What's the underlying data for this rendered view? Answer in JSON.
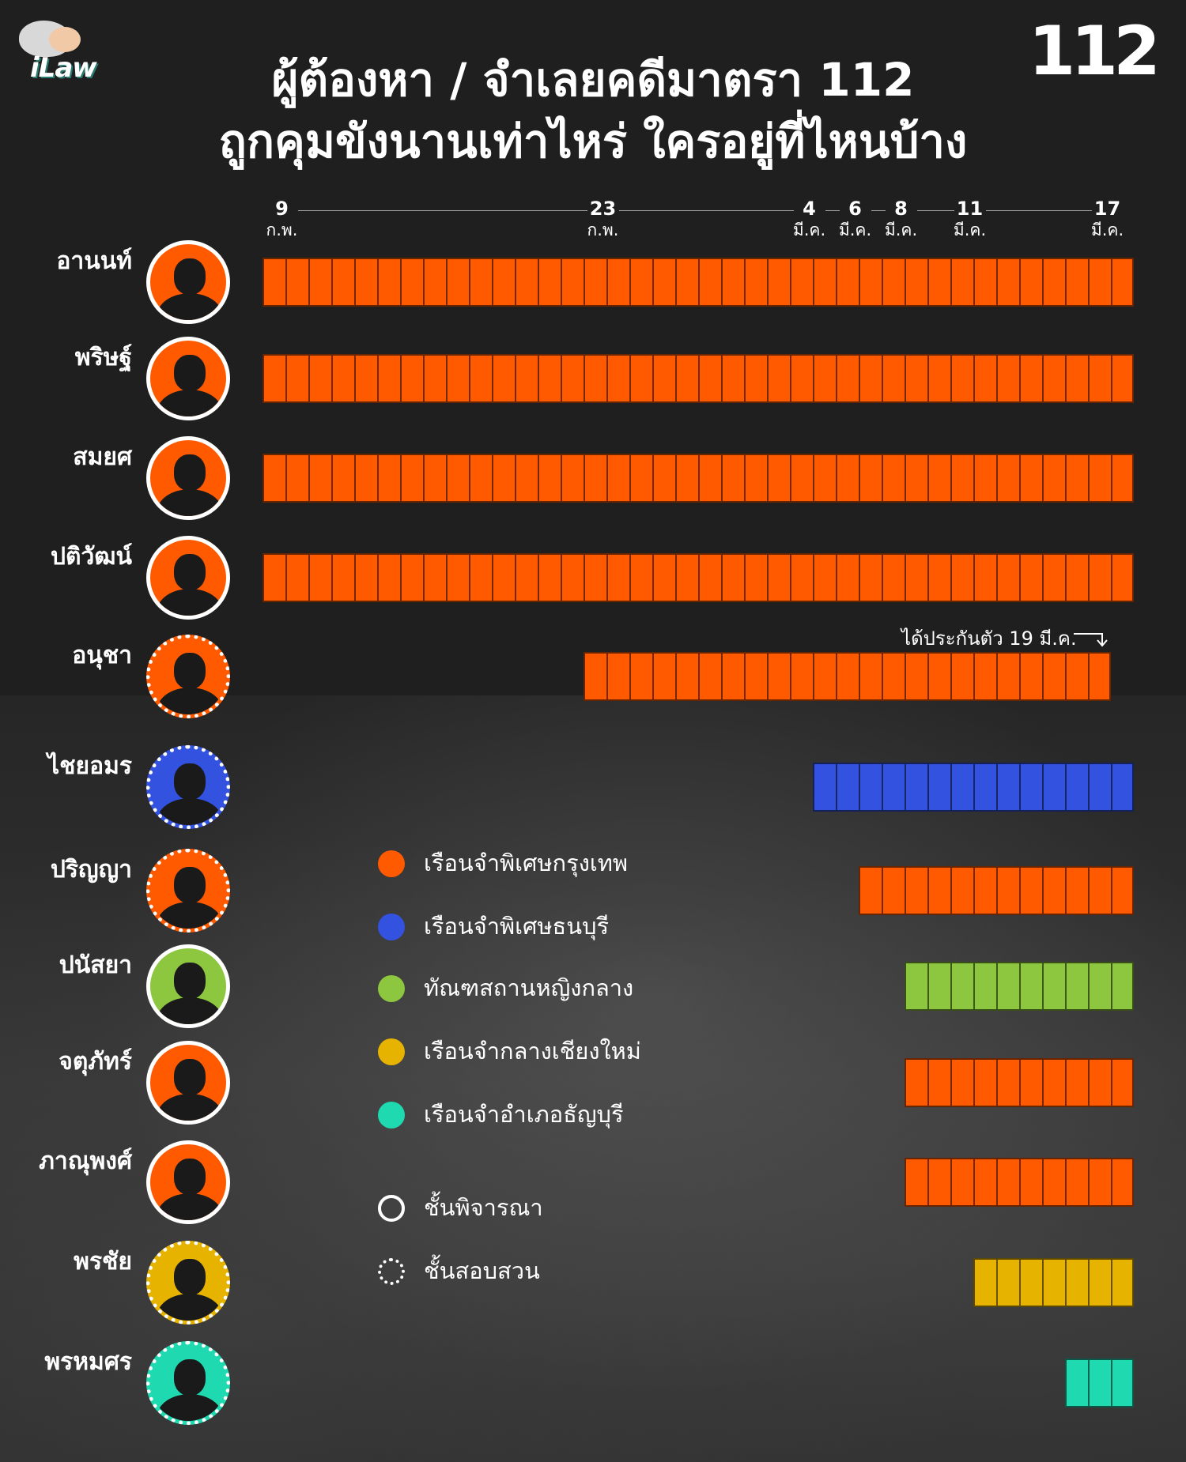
{
  "brand": {
    "left_logo": "iLaw",
    "right_logo": "112"
  },
  "title": {
    "line1": "ผู้ต้องหา / จำเลยคดีมาตรา 112",
    "line2": "ถูกคุมขังนานเท่าไหร่ ใครอยู่ที่ไหนบ้าง"
  },
  "colors": {
    "bangkok": "#ff5a00",
    "thonburi": "#3352e0",
    "women": "#8dc63f",
    "chiangmai": "#e6b400",
    "thanyaburi": "#1fd9b0",
    "background": "#1f1f1f"
  },
  "legend": {
    "prisons": [
      {
        "label": "เรือนจำพิเศษกรุงเทพ",
        "color": "#ff5a00"
      },
      {
        "label": "เรือนจำพิเศษธนบุรี",
        "color": "#3352e0"
      },
      {
        "label": "ทัณฑสถานหญิงกลาง",
        "color": "#8dc63f"
      },
      {
        "label": "เรือนจำกลางเชียงใหม่",
        "color": "#e6b400"
      },
      {
        "label": "เรือนจำอำเภอธัญบุรี",
        "color": "#1fd9b0"
      }
    ],
    "stages": [
      {
        "label": "ชั้นพิจารณา",
        "style": "solid-ring"
      },
      {
        "label": "ชั้นสอบสวน",
        "style": "dotted-ring"
      }
    ]
  },
  "chart_data": {
    "type": "bar",
    "orientation": "horizontal",
    "subtype": "timeline-gantt",
    "x_axis": {
      "type": "date",
      "range": [
        "2021-02-09",
        "2021-03-19"
      ],
      "ticks": [
        {
          "date": "2021-02-09",
          "num": "9",
          "month": "ก.พ."
        },
        {
          "date": "2021-02-23",
          "num": "23",
          "month": "ก.พ."
        },
        {
          "date": "2021-03-04",
          "num": "4",
          "month": "มี.ค."
        },
        {
          "date": "2021-03-06",
          "num": "6",
          "month": "มี.ค."
        },
        {
          "date": "2021-03-08",
          "num": "8",
          "month": "มี.ค."
        },
        {
          "date": "2021-03-11",
          "num": "11",
          "month": "มี.ค."
        },
        {
          "date": "2021-03-17",
          "num": "17",
          "month": "มี.ค."
        }
      ]
    },
    "rows": [
      {
        "name": "อานนท์",
        "start": "2021-02-09",
        "end": "2021-03-18",
        "prison": "เรือนจำพิเศษกรุงเทพ",
        "stage": "ชั้นพิจารณา"
      },
      {
        "name": "พริษฐ์",
        "start": "2021-02-09",
        "end": "2021-03-18",
        "prison": "เรือนจำพิเศษกรุงเทพ",
        "stage": "ชั้นพิจารณา"
      },
      {
        "name": "สมยศ",
        "start": "2021-02-09",
        "end": "2021-03-18",
        "prison": "เรือนจำพิเศษกรุงเทพ",
        "stage": "ชั้นพิจารณา"
      },
      {
        "name": "ปติวัฒน์",
        "start": "2021-02-09",
        "end": "2021-03-18",
        "prison": "เรือนจำพิเศษกรุงเทพ",
        "stage": "ชั้นพิจารณา"
      },
      {
        "name": "อนุชา",
        "start": "2021-02-23",
        "end": "2021-03-17",
        "prison": "เรือนจำพิเศษกรุงเทพ",
        "stage": "ชั้นสอบสวน",
        "note": "ได้ประกันตัว 19 มี.ค."
      },
      {
        "name": "ไชยอมร",
        "start": "2021-03-05",
        "end": "2021-03-18",
        "prison": "เรือนจำพิเศษธนบุรี",
        "stage": "ชั้นสอบสวน"
      },
      {
        "name": "ปริญญา",
        "start": "2021-03-07",
        "end": "2021-03-18",
        "prison": "เรือนจำพิเศษกรุงเทพ",
        "stage": "ชั้นสอบสวน"
      },
      {
        "name": "ปนัสยา",
        "start": "2021-03-09",
        "end": "2021-03-18",
        "prison": "ทัณฑสถานหญิงกลาง",
        "stage": "ชั้นพิจารณา"
      },
      {
        "name": "จตุภัทร์",
        "start": "2021-03-09",
        "end": "2021-03-18",
        "prison": "เรือนจำพิเศษกรุงเทพ",
        "stage": "ชั้นพิจารณา"
      },
      {
        "name": "ภาณุพงศ์",
        "start": "2021-03-09",
        "end": "2021-03-18",
        "prison": "เรือนจำพิเศษกรุงเทพ",
        "stage": "ชั้นพิจารณา"
      },
      {
        "name": "พรชัย",
        "start": "2021-03-12",
        "end": "2021-03-18",
        "prison": "เรือนจำกลางเชียงใหม่",
        "stage": "ชั้นสอบสวน"
      },
      {
        "name": "พรหมศร",
        "start": "2021-03-16",
        "end": "2021-03-18",
        "prison": "เรือนจำอำเภอธัญบุรี",
        "stage": "ชั้นสอบสวน"
      }
    ]
  }
}
